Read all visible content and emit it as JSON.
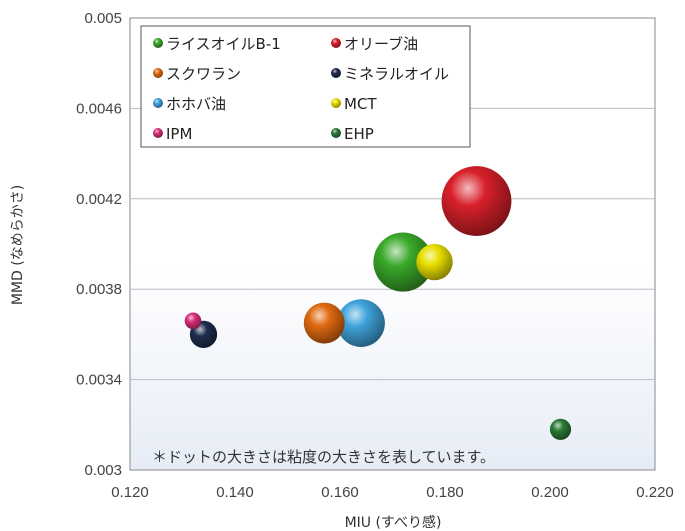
{
  "chart_data": {
    "type": "scatter",
    "xlabel": "MIU (すべり感)",
    "ylabel": "MMD (なめらかさ)",
    "xlim": [
      0.12,
      0.22
    ],
    "ylim": [
      0.003,
      0.005
    ],
    "x_ticks": [
      "0.120",
      "0.140",
      "0.160",
      "0.180",
      "0.200",
      "0.220"
    ],
    "y_ticks": [
      "0.003",
      "0.0034",
      "0.0038",
      "0.0042",
      "0.0046",
      "0.005"
    ],
    "grid": "horizontal",
    "legend_position": "top-left",
    "note": "＊ドットの大きさは粘度の大きさを表しています。",
    "series": [
      {
        "name": "ライスオイルB-1",
        "color": "#3aa82a",
        "x": 0.172,
        "y": 0.00392,
        "size": 0.7
      },
      {
        "name": "オリーブ油",
        "color": "#d8202a",
        "x": 0.186,
        "y": 0.00419,
        "size": 0.84
      },
      {
        "name": "スクワラン",
        "color": "#e06a10",
        "x": 0.157,
        "y": 0.00365,
        "size": 0.46
      },
      {
        "name": "ミネラルオイル",
        "color": "#1e2d4e",
        "x": 0.134,
        "y": 0.0036,
        "size": 0.28
      },
      {
        "name": "ホホバ油",
        "color": "#3fa3db",
        "x": 0.164,
        "y": 0.00365,
        "size": 0.55
      },
      {
        "name": "MCT",
        "color": "#e8e000",
        "x": 0.178,
        "y": 0.00392,
        "size": 0.4
      },
      {
        "name": "IPM",
        "color": "#d8307a",
        "x": 0.132,
        "y": 0.00366,
        "size": 0.14
      },
      {
        "name": "EHP",
        "color": "#2a7a35",
        "x": 0.202,
        "y": 0.00318,
        "size": 0.2
      }
    ]
  }
}
